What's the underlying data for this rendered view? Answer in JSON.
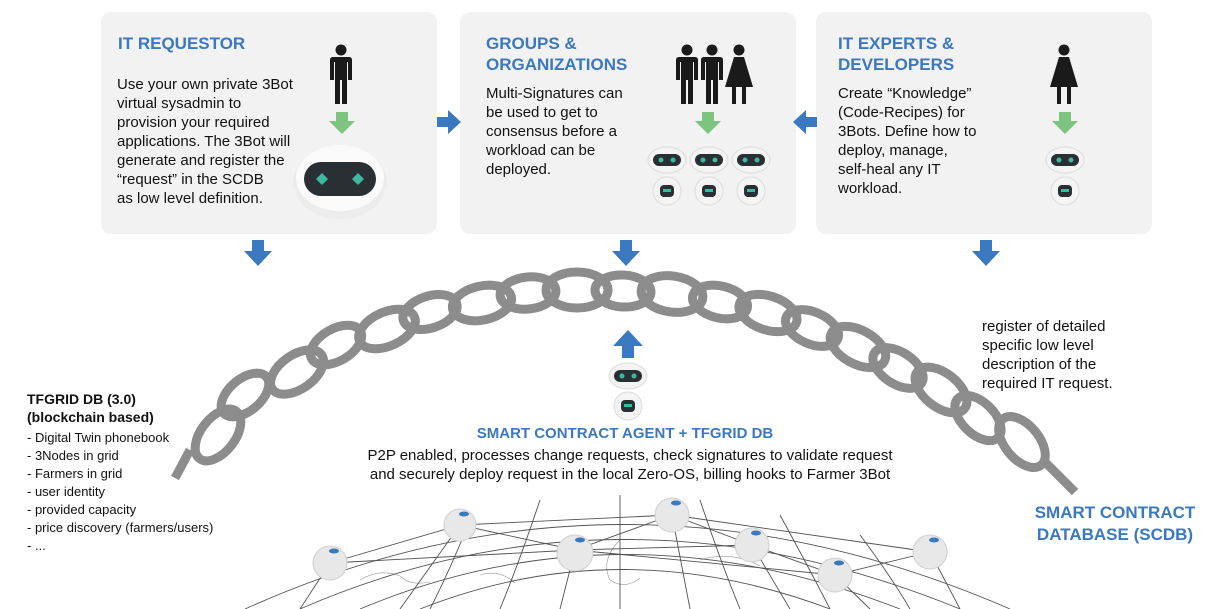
{
  "panels": [
    {
      "title_lines": [
        "IT REQUESTOR"
      ],
      "body_lines": [
        "Use your own private 3Bot",
        "virtual sysadmin to",
        "provision your required",
        "applications. The 3Bot will",
        "generate and register the",
        "“request” in the SCDB",
        "as low level definition."
      ]
    },
    {
      "title_lines": [
        "GROUPS &",
        "ORGANIZATIONS"
      ],
      "body_lines": [
        "Multi-Signatures can",
        "be used to get to",
        "consensus before a",
        "workload can be",
        "deployed."
      ]
    },
    {
      "title_lines": [
        "IT EXPERTS &",
        "DEVELOPERS"
      ],
      "body_lines": [
        "Create “Knowledge”",
        "(Code-Recipes) for",
        "3Bots. Define how to",
        "deploy, manage,",
        "self-heal any IT",
        "workload."
      ]
    }
  ],
  "tfgrid": {
    "title_lines": [
      "TFGRID DB (3.0)",
      "(blockchain based)"
    ],
    "items": [
      "- Digital Twin phonebook",
      "- 3Nodes in grid",
      "- Farmers in grid",
      "- user identity",
      "- provided capacity",
      "- price discovery (farmers/users)",
      "- ..."
    ]
  },
  "center": {
    "title": "SMART CONTRACT AGENT + TFGRID DB",
    "desc_lines": [
      "P2P enabled, processes change requests, check signatures to validate request",
      "and securely deploy request in the local Zero-OS, billing hooks to Farmer 3Bot"
    ]
  },
  "right_note_lines": [
    "register of detailed",
    "specific low level",
    "description of the",
    "required IT request."
  ],
  "scdb_label_lines": [
    "SMART CONTRACT",
    "DATABASE (SCDB)"
  ],
  "colors": {
    "accent": "#3a78c0",
    "arrow_blue": "#3a78c0",
    "arrow_green": "#7cc47f",
    "chain": "#8c8c8c",
    "panel_bg": "#f2f2f2",
    "bot_eye": "#3fb8a0"
  },
  "icons": [
    "person-icon",
    "woman-icon",
    "bot-icon",
    "chain-icon",
    "globe-icon",
    "arrow-icon"
  ]
}
